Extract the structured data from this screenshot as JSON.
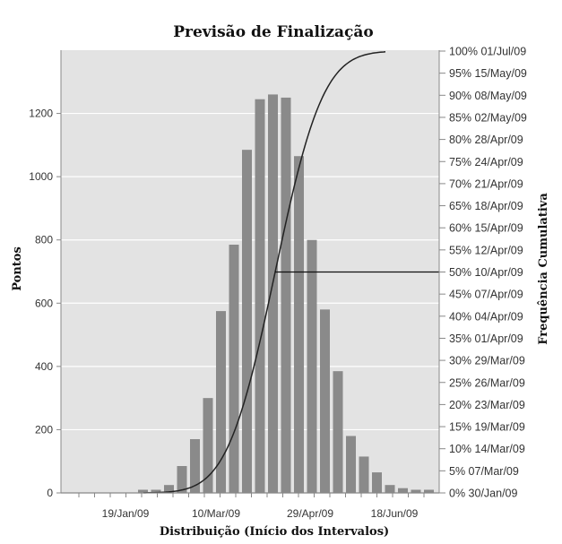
{
  "chart_data": {
    "type": "bar",
    "title": "Previsão de Finalização",
    "xlabel": "Distribuição (Início dos Intervalos)",
    "ylabel": "Pontos",
    "y2label": "Frequência Cumulativa",
    "ylim": [
      0,
      1400
    ],
    "yticks": [
      0,
      200,
      400,
      600,
      800,
      1000,
      1200
    ],
    "xticks": [
      "19/Jan/09",
      "10/Mar/09",
      "29/Apr/09",
      "18/Jun/09"
    ],
    "values": [
      10,
      10,
      25,
      85,
      170,
      300,
      575,
      785,
      1085,
      1245,
      1260,
      1250,
      1065,
      800,
      580,
      385,
      180,
      115,
      65,
      25,
      15,
      10,
      10
    ],
    "cumulative_labels": [
      "0% 30/Jan/09",
      "5% 07/Mar/09",
      "10% 14/Mar/09",
      "15% 19/Mar/09",
      "20% 23/Mar/09",
      "25% 26/Mar/09",
      "30% 29/Mar/09",
      "35% 01/Apr/09",
      "40% 04/Apr/09",
      "45% 07/Apr/09",
      "50% 10/Apr/09",
      "55% 12/Apr/09",
      "60% 15/Apr/09",
      "65% 18/Apr/09",
      "70% 21/Apr/09",
      "75% 24/Apr/09",
      "80% 28/Apr/09",
      "85% 02/May/09",
      "90% 08/May/09",
      "95% 15/May/09",
      "100% 01/Jul/09"
    ],
    "highlight_percentile": 50,
    "grid": true,
    "colors": {
      "bar": "#8a8a8a",
      "plot_bg": "#e3e3e3",
      "grid": "#ffffff",
      "curve": "#222222"
    }
  }
}
